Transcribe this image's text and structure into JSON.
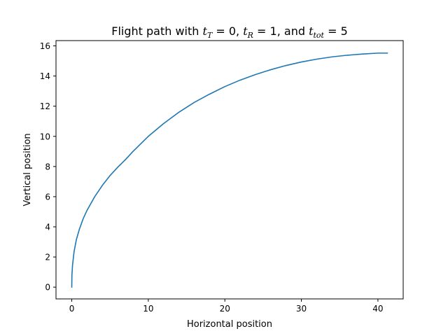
{
  "chart_data": {
    "type": "line",
    "title": {
      "prefix": "Flight path with ",
      "parts": [
        {
          "var": "t",
          "sub": "T",
          "eq": " = 0",
          "sep": ", "
        },
        {
          "var": "t",
          "sub": "R",
          "eq": " = 1",
          "sep": ", and "
        },
        {
          "var": "t",
          "sub": "tot",
          "eq": " = 5",
          "sep": ""
        }
      ]
    },
    "xlabel": "Horizontal position",
    "ylabel": "Vertical position",
    "xlim": [
      -2.06,
      43.3
    ],
    "ylim": [
      -0.78,
      16.35
    ],
    "xticks": [
      0,
      10,
      20,
      30,
      40
    ],
    "yticks": [
      0,
      2,
      4,
      6,
      8,
      10,
      12,
      14,
      16
    ],
    "grid": false,
    "legend": "none",
    "series": [
      {
        "color": "#1f77b4",
        "x": [
          0,
          0.02,
          0.1,
          0.3,
          0.6,
          1.0,
          1.5,
          2.0,
          3.0,
          4.0,
          5.0,
          6.0,
          7.0,
          8.0,
          9.0,
          10.0,
          12.0,
          14.0,
          16.0,
          18.0,
          20.0,
          22.0,
          24.0,
          26.0,
          28.0,
          30.0,
          32.0,
          34.0,
          36.0,
          38.0,
          40.0,
          41.25
        ],
        "y": [
          0,
          0.78,
          1.45,
          2.35,
          3.15,
          3.85,
          4.55,
          5.1,
          6.0,
          6.75,
          7.4,
          7.95,
          8.45,
          9.0,
          9.5,
          10.0,
          10.85,
          11.6,
          12.25,
          12.8,
          13.3,
          13.73,
          14.1,
          14.42,
          14.7,
          14.93,
          15.12,
          15.27,
          15.38,
          15.46,
          15.52,
          15.52
        ]
      }
    ]
  }
}
